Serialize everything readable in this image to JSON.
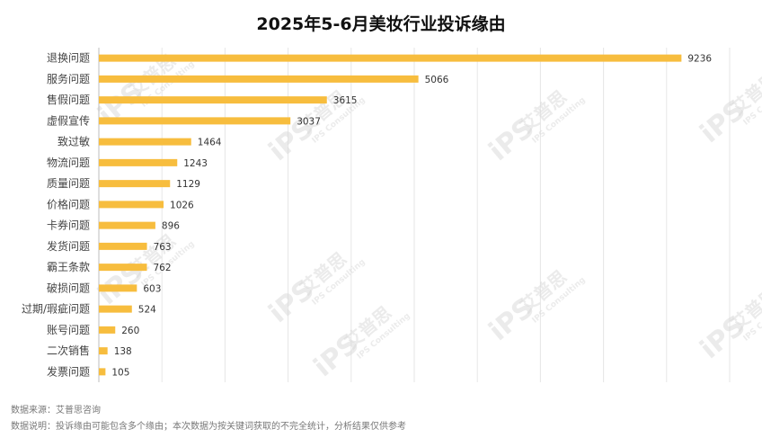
{
  "chart_data": {
    "type": "bar",
    "orientation": "horizontal",
    "title": "2025年5-6月美妆行业投诉缘由",
    "categories": [
      "退换问题",
      "服务问题",
      "售假问题",
      "虚假宣传",
      "致过敏",
      "物流问题",
      "质量问题",
      "价格问题",
      "卡券问题",
      "发货问题",
      "霸王条款",
      "破损问题",
      "过期/瑕疵问题",
      "账号问题",
      "二次销售",
      "发票问题"
    ],
    "values": [
      9236,
      5066,
      3615,
      3037,
      1464,
      1243,
      1129,
      1026,
      896,
      763,
      762,
      603,
      524,
      260,
      138,
      105
    ],
    "xlim": [
      0,
      10000
    ],
    "grid": true,
    "bar_color": "#F7BD3E",
    "show_data_labels": true
  },
  "footer": {
    "source": "数据来源：艾普思咨询",
    "note": "数据说明：投诉缘由可能包含多个缘由；本次数据为按关键词获取的不完全统计，分析结果仅供参考"
  },
  "watermark": {
    "brand": "艾普思",
    "logo": "iPS",
    "en": "IPS Consulting"
  }
}
